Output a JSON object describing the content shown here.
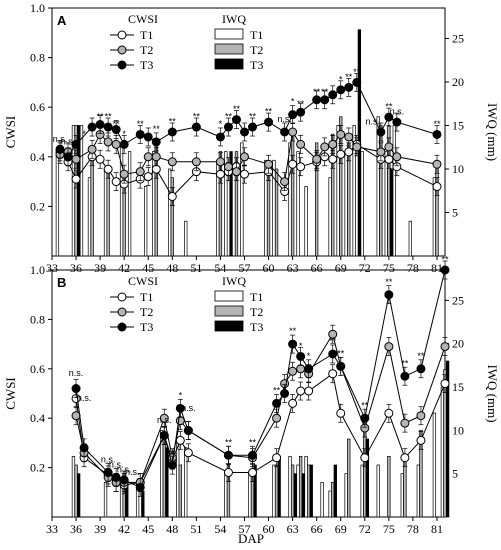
{
  "xlabel": "DAP",
  "colors": {
    "T1": "#ffffff",
    "T2": "#b4b4b4",
    "T3": "#000000"
  },
  "chart_data": [
    {
      "panel": "A",
      "type": "line",
      "xlabel": "",
      "ylabel": "CWSI",
      "y2label": "IWQ (mm)",
      "xlim": [
        33,
        82
      ],
      "ylim": [
        0,
        1.0
      ],
      "y2lim": [
        0,
        28.5
      ],
      "xticks": [
        33,
        36,
        39,
        42,
        45,
        48,
        51,
        54,
        57,
        60,
        63,
        66,
        69,
        72,
        75,
        78,
        81
      ],
      "yticks": [
        "0.2",
        "0.4",
        "0.6",
        "0.8",
        "1.0"
      ],
      "y2ticks": [
        "5",
        "10",
        "15",
        "20",
        "25"
      ],
      "legend": {
        "cwsi_title": "CWSI",
        "iwq_title": "IWQ",
        "labels": [
          "T1",
          "T2",
          "T3"
        ],
        "position": "top-left"
      },
      "series": [
        {
          "name": "T1",
          "kind": "cwsi",
          "x": [
            34,
            35,
            36,
            38,
            39,
            40,
            41,
            42,
            44,
            45,
            46,
            48,
            51,
            54,
            55,
            56,
            57,
            60,
            62,
            63,
            64,
            66,
            67,
            68,
            69,
            70,
            71,
            74,
            75,
            76,
            81
          ],
          "y": [
            0.42,
            0.38,
            0.31,
            0.4,
            0.39,
            0.35,
            0.3,
            0.29,
            0.31,
            0.32,
            0.35,
            0.24,
            0.34,
            0.33,
            0.34,
            0.36,
            0.33,
            0.34,
            0.26,
            0.37,
            0.36,
            0.38,
            0.4,
            0.39,
            0.41,
            0.42,
            0.45,
            0.39,
            0.39,
            0.36,
            0.28
          ]
        },
        {
          "name": "T2",
          "kind": "cwsi",
          "x": [
            34,
            35,
            36,
            38,
            39,
            40,
            41,
            42,
            44,
            45,
            46,
            48,
            51,
            54,
            55,
            56,
            57,
            60,
            62,
            63,
            64,
            66,
            67,
            68,
            69,
            70,
            71,
            74,
            75,
            76,
            81
          ],
          "y": [
            0.41,
            0.42,
            0.39,
            0.43,
            0.49,
            0.46,
            0.45,
            0.33,
            0.34,
            0.4,
            0.4,
            0.38,
            0.38,
            0.38,
            0.36,
            0.34,
            0.4,
            0.37,
            0.3,
            0.5,
            0.45,
            0.39,
            0.44,
            0.45,
            0.49,
            0.48,
            0.44,
            0.42,
            0.44,
            0.4,
            0.37
          ]
        },
        {
          "name": "T3",
          "kind": "cwsi",
          "x": [
            34,
            35,
            36,
            38,
            39,
            40,
            41,
            42,
            44,
            45,
            46,
            48,
            51,
            54,
            55,
            56,
            57,
            58,
            60,
            62,
            63,
            64,
            66,
            67,
            68,
            69,
            70,
            71,
            74,
            75,
            76,
            81
          ],
          "y": [
            0.43,
            0.4,
            0.45,
            0.52,
            0.53,
            0.52,
            0.51,
            0.45,
            0.49,
            0.48,
            0.46,
            0.5,
            0.52,
            0.48,
            0.52,
            0.55,
            0.5,
            0.52,
            0.54,
            0.5,
            0.57,
            0.58,
            0.63,
            0.63,
            0.65,
            0.67,
            0.68,
            0.7,
            0.5,
            0.56,
            0.54,
            0.49
          ]
        },
        {
          "name": "T1",
          "kind": "iwq",
          "x": [
            34,
            36,
            37,
            38,
            40,
            42,
            43,
            45,
            46,
            48,
            50,
            54,
            55,
            57,
            60,
            61,
            63,
            64,
            65,
            68,
            69,
            70,
            71,
            72,
            74,
            75,
            76,
            78,
            81
          ],
          "y": [
            12,
            15,
            15,
            9,
            10,
            13,
            12,
            8,
            12,
            10,
            4,
            11,
            12,
            13,
            11,
            11,
            13,
            12,
            8,
            9,
            15,
            12,
            15,
            12,
            16,
            12,
            15,
            4,
            9
          ]
        },
        {
          "name": "T2",
          "kind": "iwq",
          "x": [
            36,
            38,
            40,
            42,
            46,
            48,
            54,
            56,
            60,
            61,
            63,
            66,
            68,
            69,
            70,
            74,
            75,
            81
          ],
          "y": [
            15,
            11,
            10,
            9,
            13,
            9,
            12,
            12,
            10,
            10,
            14,
            13,
            14,
            16,
            13,
            15,
            15,
            11
          ]
        },
        {
          "name": "T3",
          "kind": "iwq",
          "x": [
            36,
            55,
            71,
            75
          ],
          "y": [
            15,
            12,
            26,
            10
          ]
        }
      ],
      "annotations": [
        {
          "x": 34,
          "y": 0.46,
          "text": "n.s."
        },
        {
          "x": 35,
          "y": 0.45,
          "text": "n.s."
        },
        {
          "x": 37,
          "y": 0.48,
          "text": "*"
        },
        {
          "x": 39,
          "y": 0.55,
          "text": "**"
        },
        {
          "x": 40,
          "y": 0.55,
          "text": "**"
        },
        {
          "x": 41,
          "y": 0.52,
          "text": "**"
        },
        {
          "x": 42,
          "y": 0.48,
          "text": "*"
        },
        {
          "x": 44,
          "y": 0.52,
          "text": "**"
        },
        {
          "x": 46,
          "y": 0.5,
          "text": "**"
        },
        {
          "x": 48,
          "y": 0.53,
          "text": "**"
        },
        {
          "x": 51,
          "y": 0.55,
          "text": "**"
        },
        {
          "x": 54,
          "y": 0.52,
          "text": "*"
        },
        {
          "x": 55,
          "y": 0.55,
          "text": "**"
        },
        {
          "x": 56,
          "y": 0.58,
          "text": "**"
        },
        {
          "x": 58,
          "y": 0.55,
          "text": "**"
        },
        {
          "x": 60,
          "y": 0.57,
          "text": "**"
        },
        {
          "x": 62,
          "y": 0.54,
          "text": "n.s."
        },
        {
          "x": 63,
          "y": 0.61,
          "text": "*"
        },
        {
          "x": 64,
          "y": 0.6,
          "text": "**"
        },
        {
          "x": 66,
          "y": 0.65,
          "text": "**"
        },
        {
          "x": 67,
          "y": 0.65,
          "text": "**"
        },
        {
          "x": 69,
          "y": 0.7,
          "text": "*"
        },
        {
          "x": 70,
          "y": 0.71,
          "text": "**"
        },
        {
          "x": 71,
          "y": 0.73,
          "text": "**"
        },
        {
          "x": 73,
          "y": 0.53,
          "text": "n.s."
        },
        {
          "x": 75,
          "y": 0.59,
          "text": "**"
        },
        {
          "x": 76,
          "y": 0.57,
          "text": "n.s."
        },
        {
          "x": 81,
          "y": 0.52,
          "text": "**"
        }
      ]
    },
    {
      "panel": "B",
      "type": "line",
      "xlabel": "DAP",
      "ylabel": "CWSI",
      "y2label": "IWQ (mm)",
      "xlim": [
        33,
        82
      ],
      "ylim": [
        0,
        1.0
      ],
      "y2lim": [
        0,
        28.5
      ],
      "xticks": [
        33,
        36,
        39,
        42,
        45,
        48,
        51,
        54,
        57,
        60,
        63,
        66,
        69,
        72,
        75,
        78,
        81
      ],
      "yticks": [
        "0.2",
        "0.4",
        "0.6",
        "0.8",
        "1.0"
      ],
      "y2ticks": [
        "5",
        "10",
        "15",
        "20",
        "25"
      ],
      "legend": {
        "cwsi_title": "CWSI",
        "iwq_title": "IWQ",
        "labels": [
          "T1",
          "T2",
          "T3"
        ],
        "position": "top-left"
      },
      "series": [
        {
          "name": "T1",
          "kind": "cwsi",
          "x": [
            36,
            37,
            40,
            41,
            42,
            44,
            47,
            48,
            49,
            50,
            55,
            58,
            61,
            63,
            64,
            65,
            68,
            69,
            72,
            75,
            77,
            79,
            82
          ],
          "y": [
            0.48,
            0.24,
            0.17,
            0.14,
            0.13,
            0.14,
            0.33,
            0.23,
            0.31,
            0.26,
            0.18,
            0.18,
            0.24,
            0.46,
            0.51,
            0.51,
            0.58,
            0.42,
            0.24,
            0.42,
            0.24,
            0.31,
            0.54
          ]
        },
        {
          "name": "T2",
          "kind": "cwsi",
          "x": [
            36,
            37,
            40,
            41,
            42,
            44,
            47,
            48,
            49,
            50,
            55,
            58,
            61,
            62,
            63,
            64,
            65,
            68,
            69,
            72,
            75,
            77,
            79,
            82
          ],
          "y": [
            0.41,
            0.26,
            0.16,
            0.14,
            0.14,
            0.14,
            0.4,
            0.24,
            0.39,
            0.35,
            0.25,
            0.24,
            0.4,
            0.54,
            0.59,
            0.6,
            0.58,
            0.74,
            0.61,
            0.36,
            0.69,
            0.38,
            0.41,
            0.69
          ]
        },
        {
          "name": "T3",
          "kind": "cwsi",
          "x": [
            36,
            37,
            40,
            41,
            42,
            44,
            47,
            48,
            49,
            50,
            55,
            58,
            61,
            62,
            63,
            64,
            65,
            68,
            69,
            72,
            75,
            77,
            79,
            82
          ],
          "y": [
            0.52,
            0.28,
            0.18,
            0.16,
            0.15,
            0.12,
            0.33,
            0.21,
            0.44,
            0.35,
            0.25,
            0.25,
            0.46,
            0.5,
            0.7,
            0.65,
            0.6,
            0.66,
            0.61,
            0.4,
            0.9,
            0.57,
            0.6,
            1.0
          ]
        },
        {
          "name": "T1",
          "kind": "iwq",
          "x": [
            36,
            40,
            42,
            44,
            47,
            49,
            50,
            55,
            58,
            61,
            63,
            64,
            65,
            67,
            68,
            70,
            72,
            74,
            77,
            79,
            81,
            82
          ],
          "y": [
            7,
            4,
            4,
            4,
            10,
            9,
            8,
            5,
            5,
            6,
            7,
            6,
            7,
            4,
            3,
            5,
            6,
            6,
            5,
            6,
            12,
            15
          ]
        },
        {
          "name": "T2",
          "kind": "iwq",
          "x": [
            36,
            42,
            47,
            49,
            55,
            58,
            61,
            63,
            64,
            65,
            68,
            70,
            72,
            75,
            77,
            79,
            82
          ],
          "y": [
            6,
            5,
            9,
            6,
            6,
            5,
            6,
            6,
            7,
            6,
            4,
            9,
            11,
            7,
            7,
            10,
            17
          ]
        },
        {
          "name": "T3",
          "kind": "iwq",
          "x": [
            36,
            42,
            44,
            47,
            58,
            61,
            63,
            64,
            65,
            68,
            72,
            82
          ],
          "y": [
            5,
            4,
            3,
            8,
            6,
            7,
            5,
            5,
            6,
            6,
            9,
            18
          ]
        }
      ],
      "annotations": [
        {
          "x": 36,
          "y": 0.57,
          "text": "n.s."
        },
        {
          "x": 37,
          "y": 0.47,
          "text": "n.s."
        },
        {
          "x": 40,
          "y": 0.22,
          "text": "n.s."
        },
        {
          "x": 41,
          "y": 0.2,
          "text": "n.s."
        },
        {
          "x": 42,
          "y": 0.18,
          "text": "n.s."
        },
        {
          "x": 43,
          "y": 0.17,
          "text": "n.s."
        },
        {
          "x": 47,
          "y": 0.38,
          "text": "n.s."
        },
        {
          "x": 49,
          "y": 0.48,
          "text": "*"
        },
        {
          "x": 50,
          "y": 0.43,
          "text": "n.s."
        },
        {
          "x": 55,
          "y": 0.29,
          "text": "**"
        },
        {
          "x": 58,
          "y": 0.29,
          "text": "**"
        },
        {
          "x": 61,
          "y": 0.5,
          "text": "**"
        },
        {
          "x": 63,
          "y": 0.74,
          "text": "**"
        },
        {
          "x": 64,
          "y": 0.68,
          "text": "*"
        },
        {
          "x": 65,
          "y": 0.64,
          "text": "*"
        },
        {
          "x": 68,
          "y": 0.7,
          "text": "**"
        },
        {
          "x": 69,
          "y": 0.65,
          "text": "**"
        },
        {
          "x": 72,
          "y": 0.44,
          "text": "**"
        },
        {
          "x": 75,
          "y": 0.94,
          "text": "**"
        },
        {
          "x": 77,
          "y": 0.61,
          "text": "**"
        },
        {
          "x": 79,
          "y": 0.64,
          "text": "**"
        },
        {
          "x": 82,
          "y": 1.03,
          "text": "**"
        }
      ]
    }
  ]
}
